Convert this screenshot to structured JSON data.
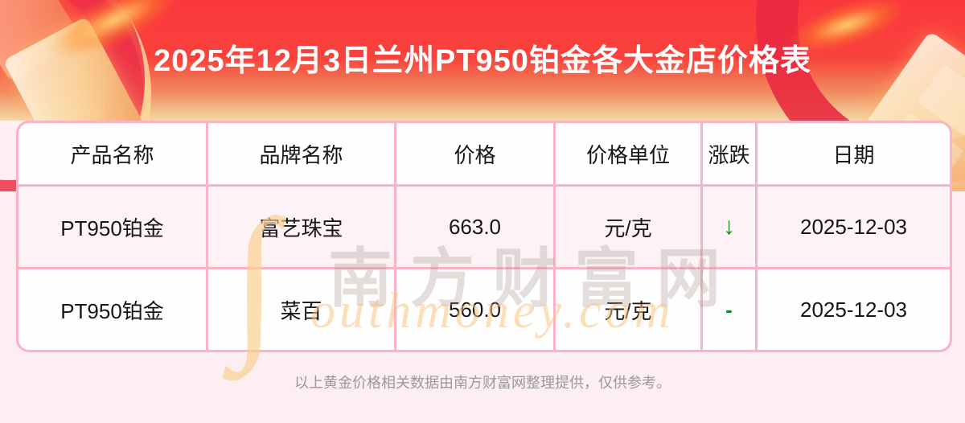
{
  "banner": {
    "title": "2025年12月3日兰州PT950铂金各大金店价格表",
    "gradient_top": "#fa383c",
    "gradient_bottom": "#f4d9a6"
  },
  "chart_data": {
    "type": "table",
    "title": "2025年12月3日兰州PT950铂金各大金店价格表",
    "columns": [
      "产品名称",
      "品牌名称",
      "价格",
      "价格单位",
      "涨跌",
      "日期"
    ],
    "rows": [
      [
        "PT950铂金",
        "富艺珠宝",
        "663.0",
        "元/克",
        "↓",
        "2025-12-03"
      ],
      [
        "PT950铂金",
        "菜百",
        "560.0",
        "元/克",
        "-",
        "2025-12-03"
      ]
    ]
  },
  "table": {
    "headers": {
      "product": "产品名称",
      "brand": "品牌名称",
      "price": "价格",
      "unit": "价格单位",
      "change": "涨跌",
      "date": "日期"
    },
    "rows": [
      {
        "product": "PT950铂金",
        "brand": "富艺珠宝",
        "price": "663.0",
        "unit": "元/克",
        "change": "↓",
        "date": "2025-12-03"
      },
      {
        "product": "PT950铂金",
        "brand": "菜百",
        "price": "560.0",
        "unit": "元/克",
        "change": "-",
        "date": "2025-12-03"
      }
    ],
    "border_color": "#f8b4c4",
    "change_color": "#128c1e"
  },
  "watermark": {
    "cn": "南方财富网",
    "s_swash": "∫",
    "en": "outhmoney.com"
  },
  "footer": {
    "note": "以上黄金价格相关数据由南方财富网整理提供，仅供参考。"
  }
}
